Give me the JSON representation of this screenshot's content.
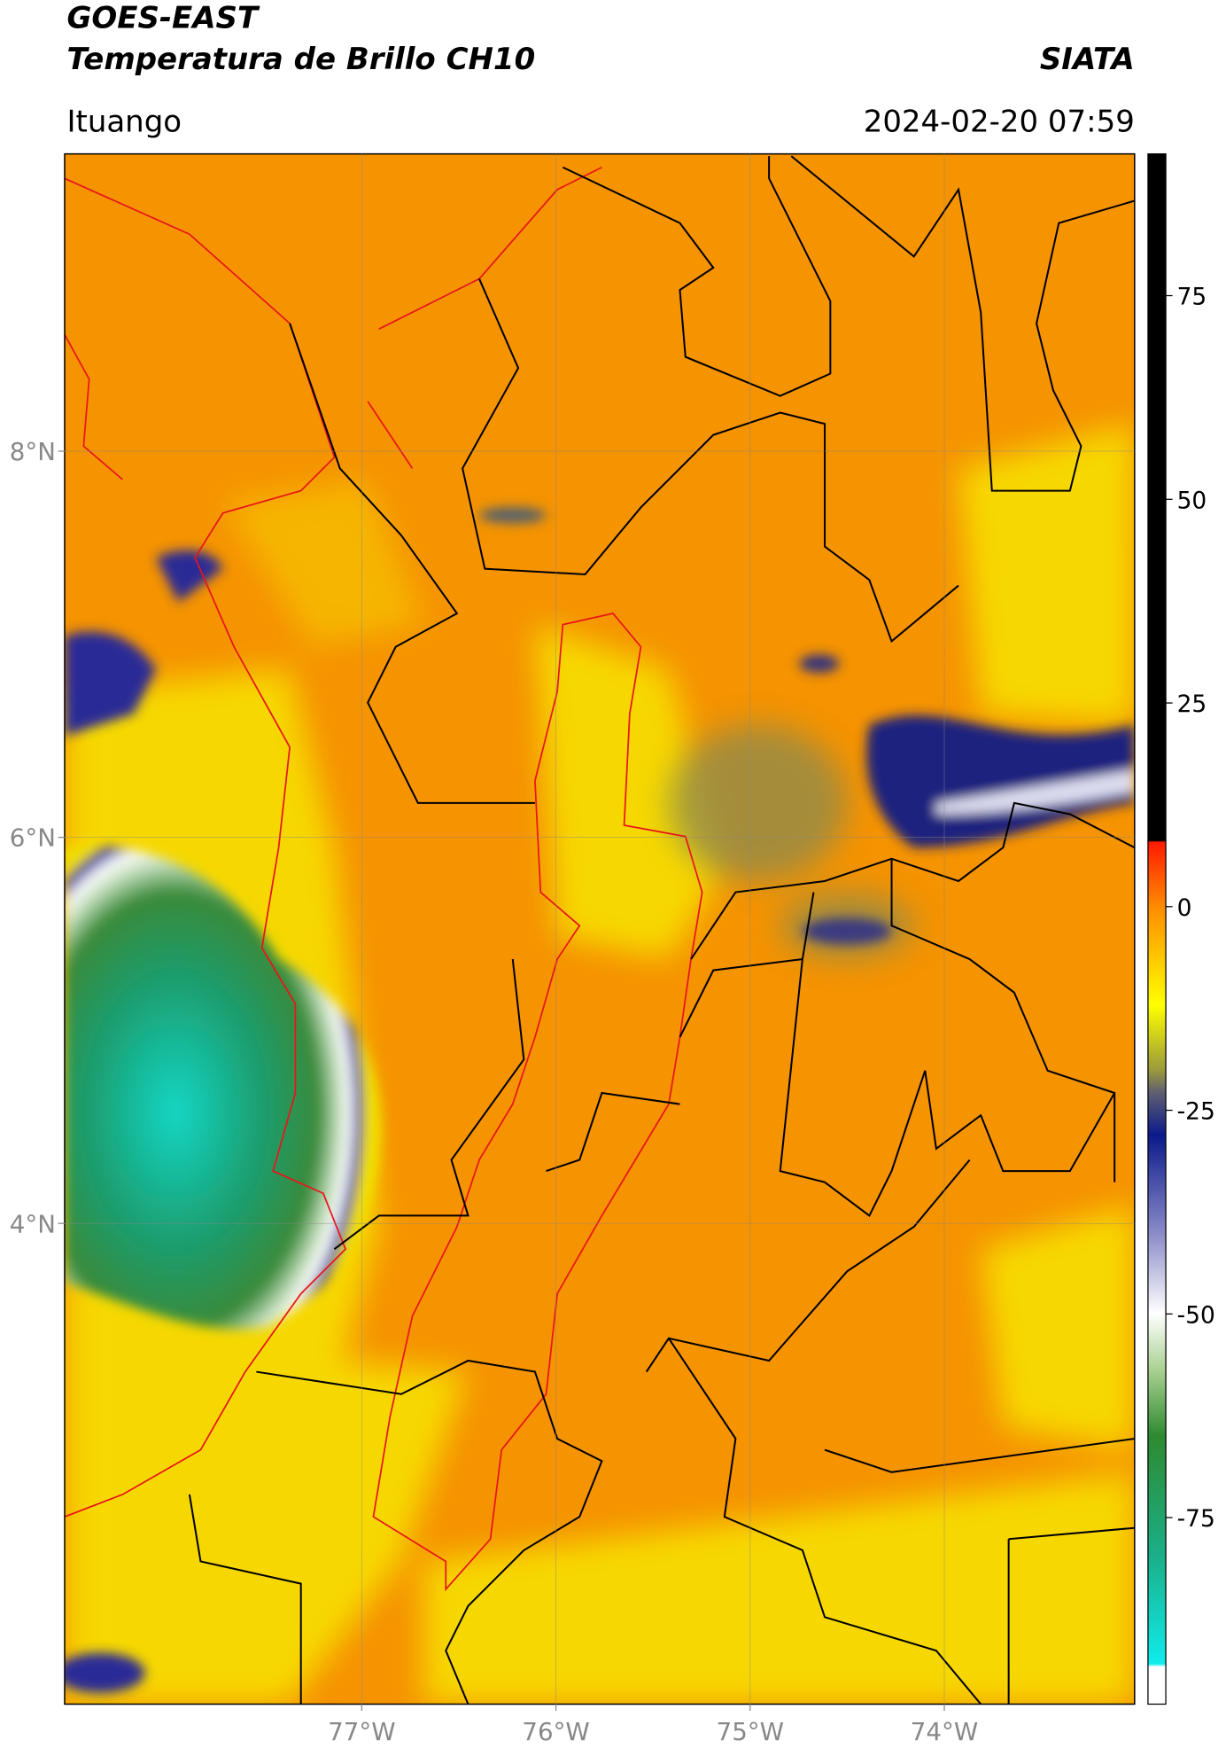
{
  "header": {
    "title": "GOES-EAST",
    "subtitle": "Temperatura de Brillo CH10",
    "source": "SIATA",
    "region": "Ituango",
    "datetime": "2024-02-20 07:59"
  },
  "map": {
    "lonlim": [
      -78.53,
      -73.02
    ],
    "latlim": [
      1.51,
      9.54
    ],
    "xticks": [
      {
        "value": -77,
        "label": "77°W"
      },
      {
        "value": -76,
        "label": "76°W"
      },
      {
        "value": -75,
        "label": "75°W"
      },
      {
        "value": -74,
        "label": "74°W"
      }
    ],
    "yticks": [
      {
        "value": 8,
        "label": "8°N"
      },
      {
        "value": 6,
        "label": "6°N"
      },
      {
        "value": 4,
        "label": "4°N"
      }
    ],
    "grid": true
  },
  "colorbar": {
    "lim": [
      -97.9,
      92.4
    ],
    "ticks": [
      75,
      50,
      25,
      0,
      -25,
      -50,
      -75
    ]
  }
}
